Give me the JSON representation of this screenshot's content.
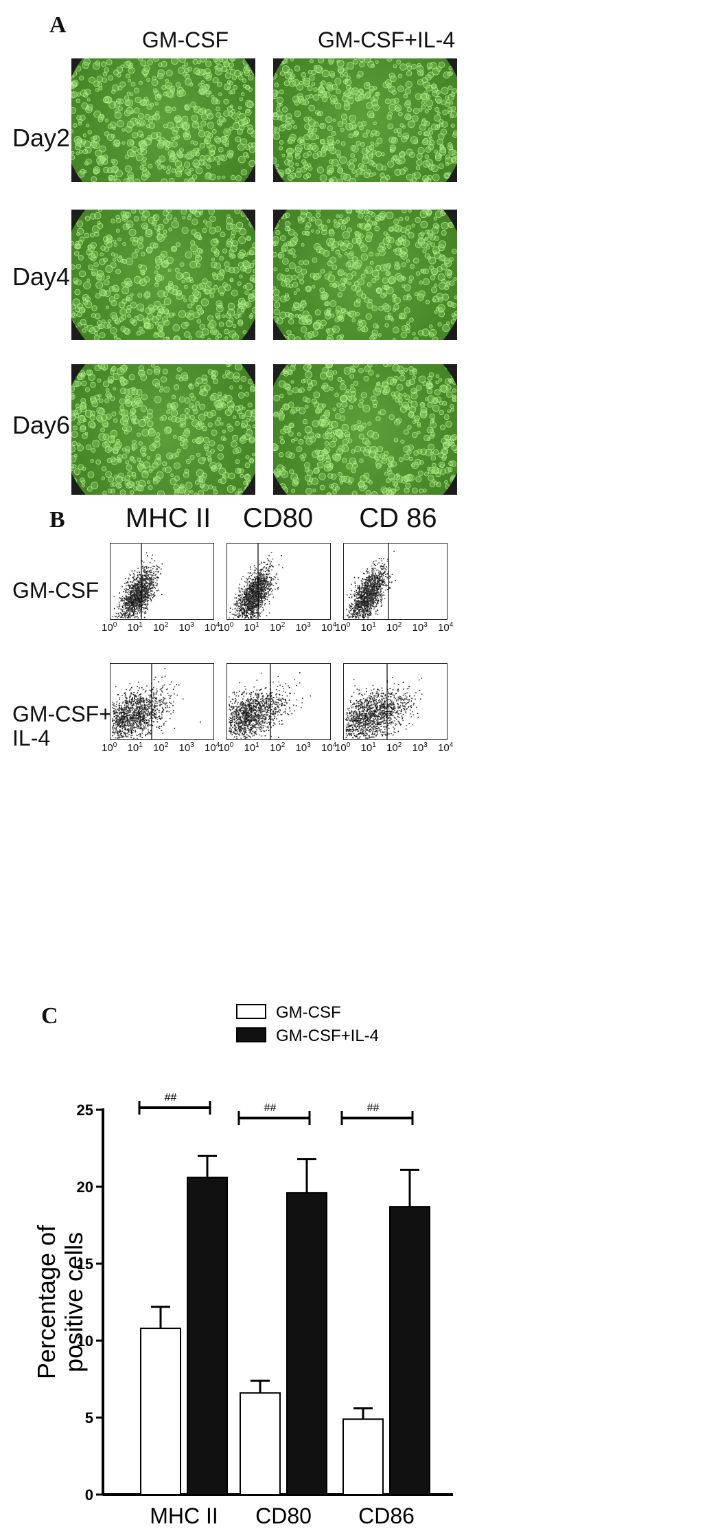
{
  "panel_a": {
    "letter": "A",
    "columns": [
      "GM-CSF",
      "GM-CSF+IL-4"
    ],
    "rows": [
      "Day2",
      "Day4",
      "Day6"
    ]
  },
  "panel_b": {
    "letter": "B",
    "columns": [
      "MHC II",
      "CD80",
      "CD 86"
    ],
    "rows": [
      "GM-CSF",
      "GM-CSF+\nIL-4"
    ],
    "axis_ticks": [
      "10",
      "10",
      "10",
      "10",
      "10"
    ],
    "axis_exponents": [
      "0",
      "1",
      "2",
      "3",
      "4"
    ]
  },
  "panel_c": {
    "letter": "C"
  },
  "chart_data": {
    "type": "bar",
    "categories": [
      "MHC II",
      "CD80",
      "CD86"
    ],
    "series": [
      {
        "name": "GM-CSF",
        "values": [
          10.8,
          6.6,
          4.9
        ],
        "errors": [
          1.4,
          0.8,
          0.7
        ],
        "color": "#ffffff"
      },
      {
        "name": "GM-CSF+IL-4",
        "values": [
          20.6,
          19.6,
          18.7
        ],
        "errors": [
          1.4,
          2.2,
          2.4
        ],
        "color": "#111111"
      }
    ],
    "ylabel": "Percentage of\npositive cells",
    "ylim": [
      0,
      25
    ],
    "yticks": [
      "0",
      "5",
      "10",
      "15",
      "20",
      "25"
    ],
    "significance": [
      "##",
      "##",
      "##"
    ],
    "legend_position": "top"
  }
}
